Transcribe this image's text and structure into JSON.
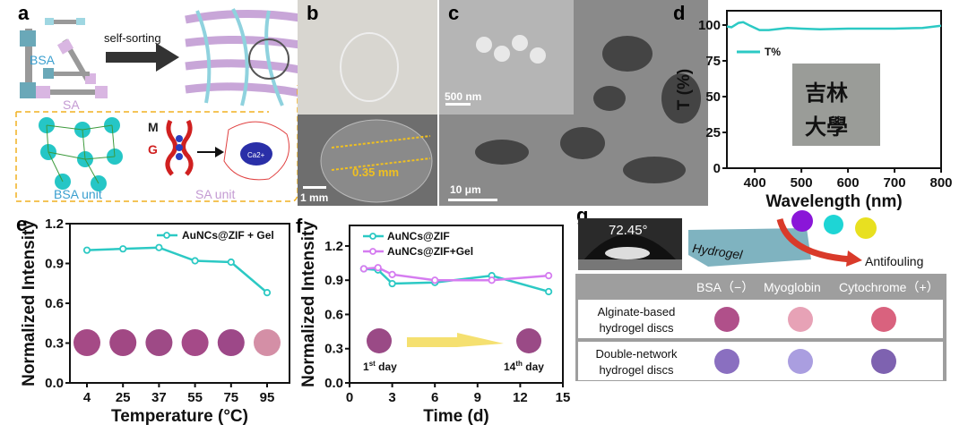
{
  "panels": {
    "a": {
      "label": "a",
      "arrow_text": "self-sorting",
      "bsa": "BSA",
      "sa": "SA",
      "m": "M",
      "g": "G",
      "ca": "Ca2+",
      "bsa_unit": "BSA unit",
      "sa_unit": "SA unit"
    },
    "b": {
      "label": "b",
      "thickness": "0.35 mm",
      "scale": "1 mm"
    },
    "c": {
      "label": "c",
      "scale_inset": "500 nm",
      "scale_main": "10 μm"
    },
    "g": {
      "label": "g",
      "angle": "72.45°",
      "hydrogel": "Hydrogel",
      "antifouling": "Antifouling",
      "columns": [
        "BSA（−）",
        "Myoglobin",
        "Cytochrome（+）"
      ],
      "rows": [
        {
          "name1": "Alginate-based",
          "name2": "hydrogel discs",
          "colors": [
            "#b0508a",
            "#e7a2b6",
            "#d9627e"
          ]
        },
        {
          "name1": "Double-network",
          "name2": "hydrogel discs",
          "colors": [
            "#8a6fc0",
            "#aa9ee0",
            "#7e62b0"
          ]
        }
      ]
    },
    "f": {
      "day1": "1",
      "day1_sup": "st",
      "day1_suffix": " day",
      "day14": "14",
      "day14_sup": "th",
      "day14_suffix": " day"
    }
  },
  "colors": {
    "teal": "#2cc9c4",
    "violet": "#d57cf0",
    "yellow": "#f0c020"
  },
  "chart_data": [
    {
      "id": "d",
      "label": "d",
      "type": "line",
      "xlabel": "Wavelength (nm)",
      "ylabel": "T (%)",
      "xlim": [
        340,
        800
      ],
      "ylim": [
        0,
        110
      ],
      "xticks": [
        400,
        500,
        600,
        700,
        800
      ],
      "yticks": [
        0,
        25,
        50,
        75,
        100
      ],
      "legend": "upper-left",
      "series": [
        {
          "name": "T%",
          "color": "#2cc9c4",
          "x": [
            340,
            350,
            365,
            375,
            390,
            410,
            430,
            470,
            500,
            540,
            600,
            700,
            760,
            800
          ],
          "y": [
            99,
            98.5,
            101.5,
            102,
            99.5,
            96.5,
            96.5,
            98,
            97.5,
            97,
            97.5,
            97.5,
            98,
            99.5
          ]
        }
      ]
    },
    {
      "id": "e",
      "label": "e",
      "type": "line",
      "xlabel": "Temperature (°C)",
      "ylabel": "Normalized Intensity",
      "categories": [
        "4",
        "25",
        "37",
        "55",
        "75",
        "95"
      ],
      "ylim": [
        0,
        1.2
      ],
      "yticks": [
        "0.0",
        "0.3",
        "0.6",
        "0.9",
        "1.2"
      ],
      "legend": "top-right",
      "series": [
        {
          "name": "AuNCs@ZIF + Gel",
          "color": "#2cc9c4",
          "values": [
            1.0,
            1.01,
            1.02,
            0.92,
            0.91,
            0.68
          ]
        }
      ],
      "disc_colors": [
        "#a54a86",
        "#a14884",
        "#9e4a86",
        "#a54a88",
        "#9d4888",
        "#d48fa6"
      ]
    },
    {
      "id": "f",
      "label": "f",
      "type": "line",
      "xlabel": "Time (d)",
      "ylabel": "Normalized Intensity",
      "xlim": [
        0,
        15
      ],
      "ylim": [
        0,
        1.38
      ],
      "xticks": [
        0,
        3,
        6,
        9,
        12,
        15
      ],
      "yticks": [
        "0.0",
        "0.3",
        "0.6",
        "0.9",
        "1.2"
      ],
      "legend": "upper-left",
      "series": [
        {
          "name": "AuNCs@ZIF",
          "color": "#2cc9c4",
          "x": [
            1,
            2,
            3,
            6,
            10,
            14
          ],
          "y": [
            1.0,
            0.99,
            0.87,
            0.88,
            0.94,
            0.8
          ]
        },
        {
          "name": "AuNCs@ZIF+Gel",
          "color": "#d57cf0",
          "x": [
            1,
            2,
            3,
            6,
            10,
            14
          ],
          "y": [
            1.0,
            1.01,
            0.95,
            0.9,
            0.9,
            0.94
          ]
        }
      ]
    }
  ]
}
